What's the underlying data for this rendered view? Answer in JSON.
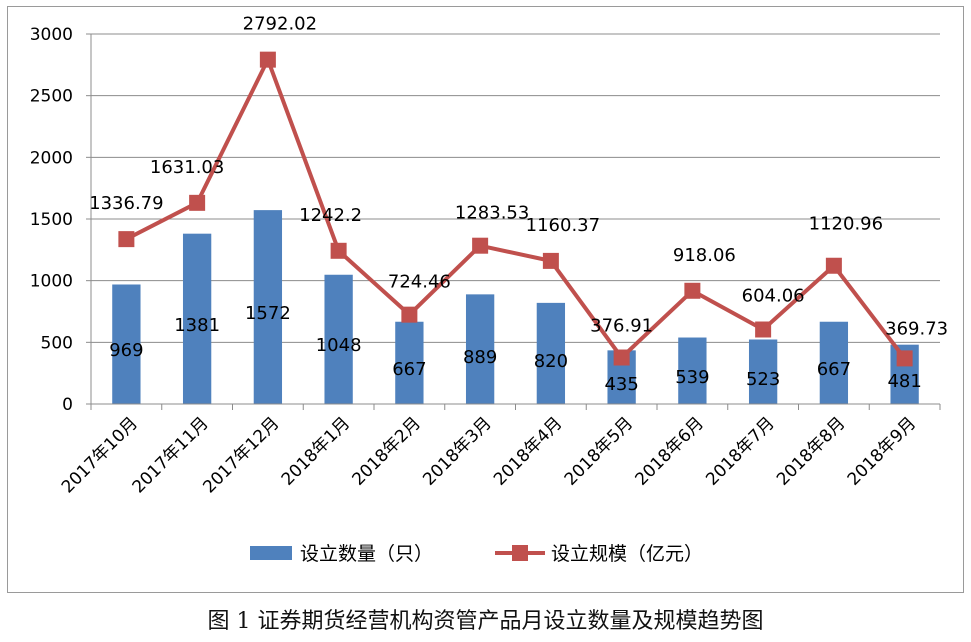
{
  "chart_data": {
    "type": "bar",
    "categories": [
      "2017年10月",
      "2017年11月",
      "2017年12月",
      "2018年1月",
      "2018年2月",
      "2018年3月",
      "2018年4月",
      "2018年5月",
      "2018年6月",
      "2018年7月",
      "2018年8月",
      "2018年9月"
    ],
    "series": [
      {
        "name": "设立数量（只）",
        "type": "bar",
        "color": "#4f81bd",
        "values": [
          969,
          1381,
          1572,
          1048,
          667,
          889,
          820,
          435,
          539,
          523,
          667,
          481
        ]
      },
      {
        "name": "设立规模（亿元）",
        "type": "line",
        "color": "#c0504d",
        "values": [
          1336.79,
          1631.03,
          2792.02,
          1242.2,
          724.46,
          1283.53,
          1160.37,
          376.91,
          918.06,
          604.06,
          1120.96,
          369.73
        ]
      }
    ],
    "bar_labels": [
      "969",
      "1381",
      "1572",
      "1048",
      "667",
      "889",
      "820",
      "435",
      "539",
      "523",
      "667",
      "481"
    ],
    "line_labels": [
      "1336.79",
      "1631.03",
      "2792.02",
      "1242.2",
      "724.46",
      "1283.53",
      "1160.37",
      "376.91",
      "918.06",
      "604.06",
      "1120.96",
      "369.73"
    ],
    "yticks": [
      "0",
      "500",
      "1000",
      "1500",
      "2000",
      "2500",
      "3000"
    ],
    "ylim": [
      0,
      3000
    ],
    "grid": true,
    "legend_position": "bottom"
  },
  "caption": "图 1  证券期货经营机构资管产品月设立数量及规模趋势图"
}
